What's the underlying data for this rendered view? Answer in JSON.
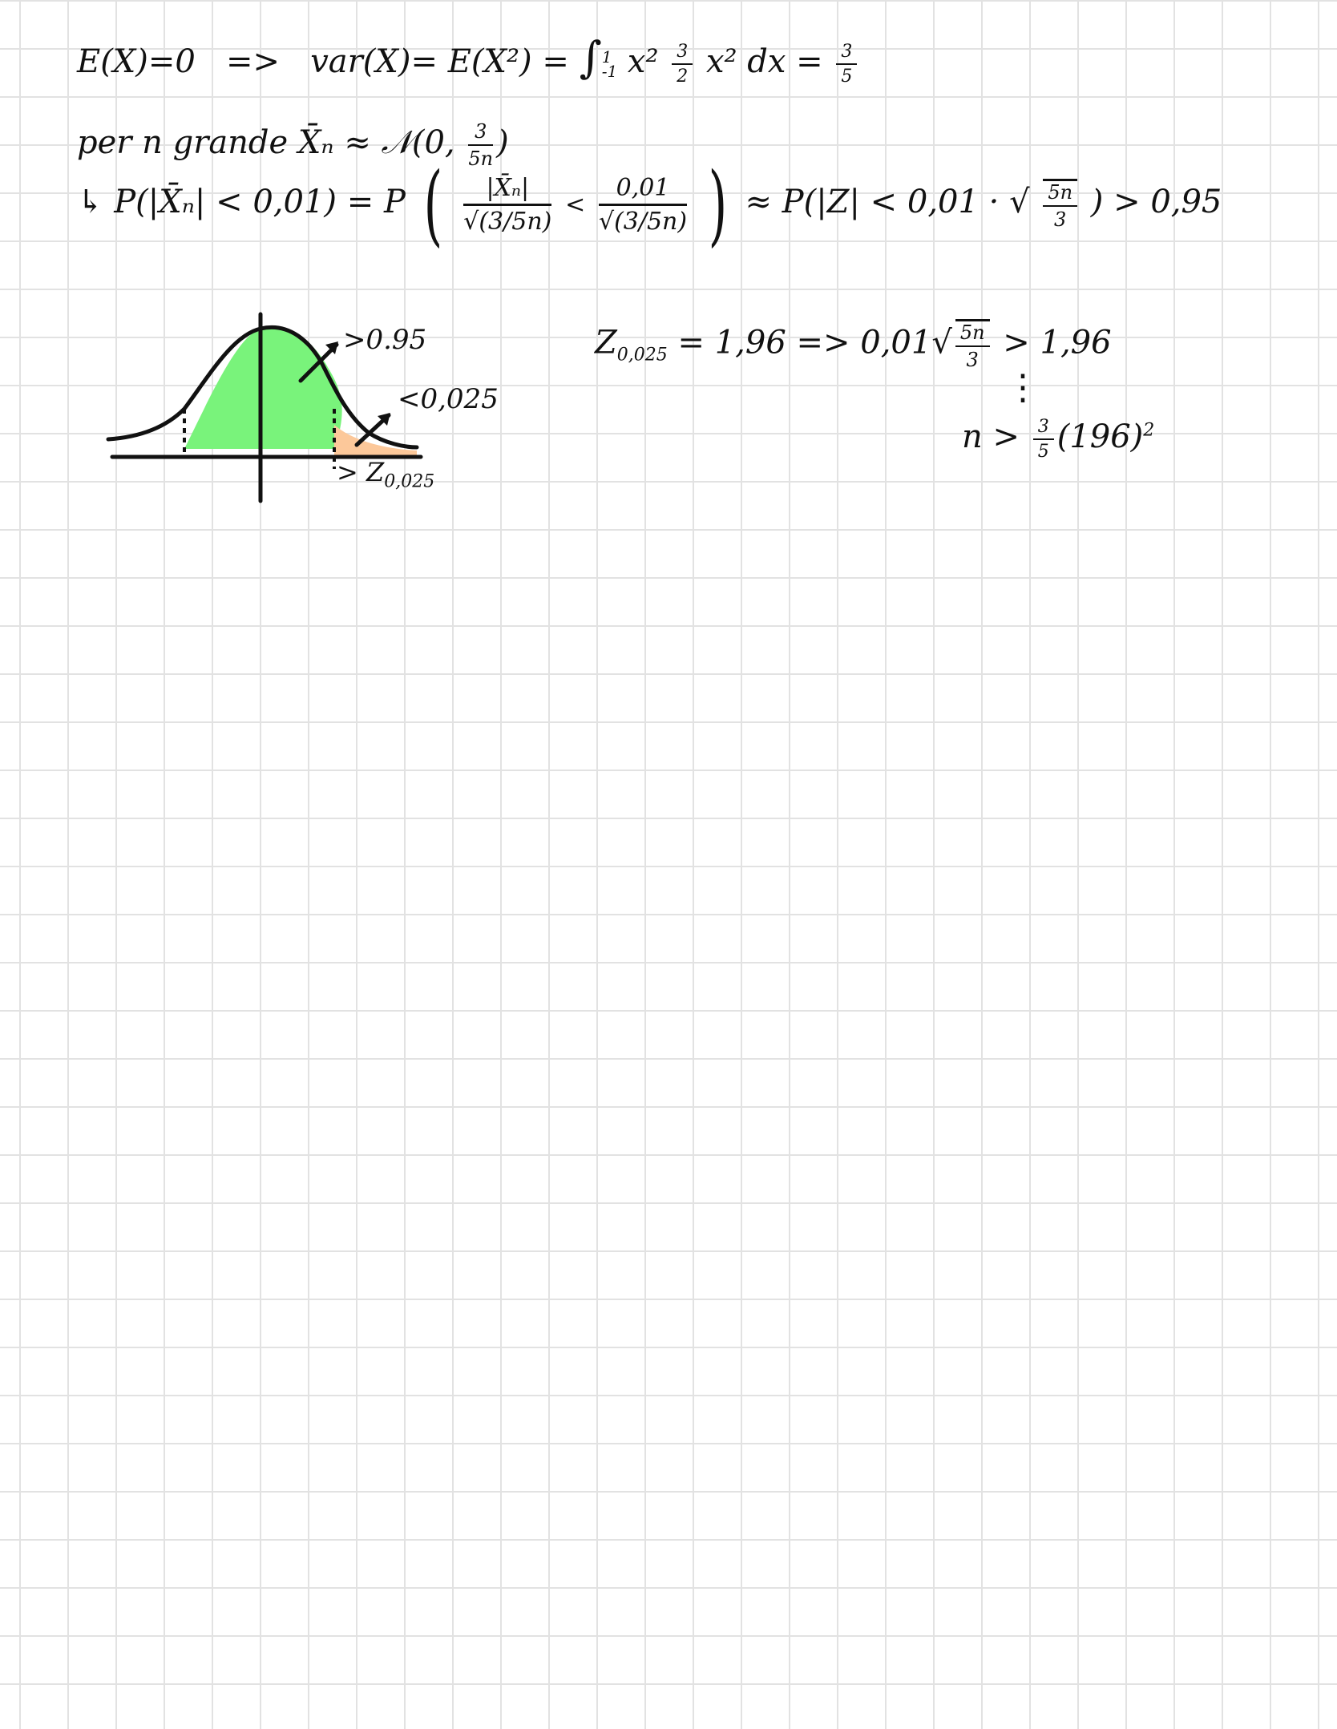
{
  "notes": {
    "line1": {
      "mean": "E(X)=0",
      "implies": "=>",
      "variance": "var(X)= E(X²) =",
      "integral": "∫",
      "int_upper": "1",
      "int_lower": "-1",
      "integrand": "x² ",
      "int_frac_num": "3",
      "int_frac_den": "2",
      "integrand_tail": "x² dx =",
      "result_num": "3",
      "result_den": "5"
    },
    "line2": {
      "text": "per  n  grande   X̄ₙ ≈ 𝒩(0,",
      "frac_num": "3",
      "frac_den": "5n",
      "close": ")"
    },
    "line3": {
      "arrow": "↳",
      "lhs": "P(|X̄ₙ| < 0,01) =  P",
      "frac1_num": "|X̄ₙ|",
      "frac1_den": "√(3/5n)",
      "lt": "<",
      "frac2_num": "0,01",
      "frac2_den": "√(3/5n)",
      "approx": "≈ P(|Z| < 0,01 · √",
      "root_num": "5n",
      "root_den": "3",
      "rhs": ") > 0,95"
    },
    "line4": {
      "z": "Z",
      "z_sub": "0,025",
      "eq": " = 1,96  =>  0,01√",
      "root_num": "5n",
      "root_den": "3",
      "tail": " > 1,96"
    },
    "line5": {
      "dots": "⋮",
      "lhs": "n >",
      "frac_num": "3",
      "frac_den": "5",
      "paren": "(196)",
      "exp": "2"
    },
    "figure": {
      "label_center": ">0.95",
      "label_tail": "<0,025",
      "label_quantile": "> Z",
      "label_quantile_sub": "0,025",
      "center_color": "#79f37b",
      "tail_color": "#fcc89a",
      "ink_color": "#111111"
    }
  }
}
